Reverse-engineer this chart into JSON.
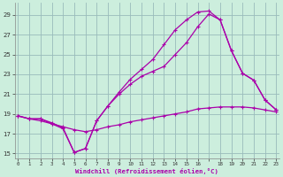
{
  "xlabel": "Windchill (Refroidissement éolien,°C)",
  "background_color": "#cceedd",
  "line_color": "#aa00aa",
  "grid_color": "#99bbbb",
  "x_ticks": [
    0,
    1,
    2,
    3,
    4,
    5,
    6,
    7,
    8,
    9,
    10,
    11,
    12,
    13,
    14,
    15,
    16,
    17,
    18,
    19,
    20,
    21,
    22,
    23
  ],
  "x_tick_labels": [
    "0",
    "1",
    "2",
    "3",
    "4",
    "5",
    "6",
    "7",
    "8",
    "9",
    "10",
    "11",
    "12",
    "13",
    "14",
    "15",
    "16",
    "",
    "18",
    "19",
    "20",
    "21",
    "22",
    "23"
  ],
  "y_ticks": [
    15,
    17,
    19,
    21,
    23,
    25,
    27,
    29
  ],
  "xlim": [
    -0.3,
    23.3
  ],
  "ylim": [
    14.5,
    30.2
  ],
  "line1_x": [
    0,
    1,
    2,
    3,
    4,
    5,
    6,
    7,
    8,
    9,
    10,
    11,
    12,
    13,
    14,
    15,
    16,
    17,
    18,
    19,
    20,
    21,
    22,
    23
  ],
  "line1_y": [
    18.8,
    18.5,
    18.5,
    18.0,
    17.5,
    15.1,
    15.5,
    18.3,
    19.8,
    21.2,
    22.5,
    23.5,
    24.5,
    26.0,
    27.5,
    28.5,
    29.3,
    29.4,
    28.5,
    25.4,
    23.1,
    22.4,
    20.4,
    19.4
  ],
  "line2_x": [
    0,
    1,
    2,
    3,
    4,
    5,
    6,
    7,
    8,
    9,
    10,
    11,
    12,
    13,
    14,
    15,
    16,
    17,
    18,
    19,
    20,
    21,
    22,
    23
  ],
  "line2_y": [
    18.8,
    18.5,
    18.5,
    18.1,
    17.6,
    15.1,
    15.5,
    18.3,
    19.8,
    21.0,
    22.0,
    22.8,
    23.3,
    23.8,
    25.0,
    26.2,
    27.8,
    29.1,
    28.5,
    25.4,
    23.1,
    22.4,
    20.4,
    19.4
  ],
  "line3_x": [
    0,
    1,
    2,
    3,
    4,
    5,
    6,
    7,
    8,
    9,
    10,
    11,
    12,
    13,
    14,
    15,
    16,
    17,
    18,
    19,
    20,
    21,
    22,
    23
  ],
  "line3_y": [
    18.8,
    18.5,
    18.3,
    18.0,
    17.7,
    17.4,
    17.2,
    17.4,
    17.7,
    17.9,
    18.2,
    18.4,
    18.6,
    18.8,
    19.0,
    19.2,
    19.5,
    19.6,
    19.7,
    19.7,
    19.7,
    19.6,
    19.4,
    19.2
  ]
}
